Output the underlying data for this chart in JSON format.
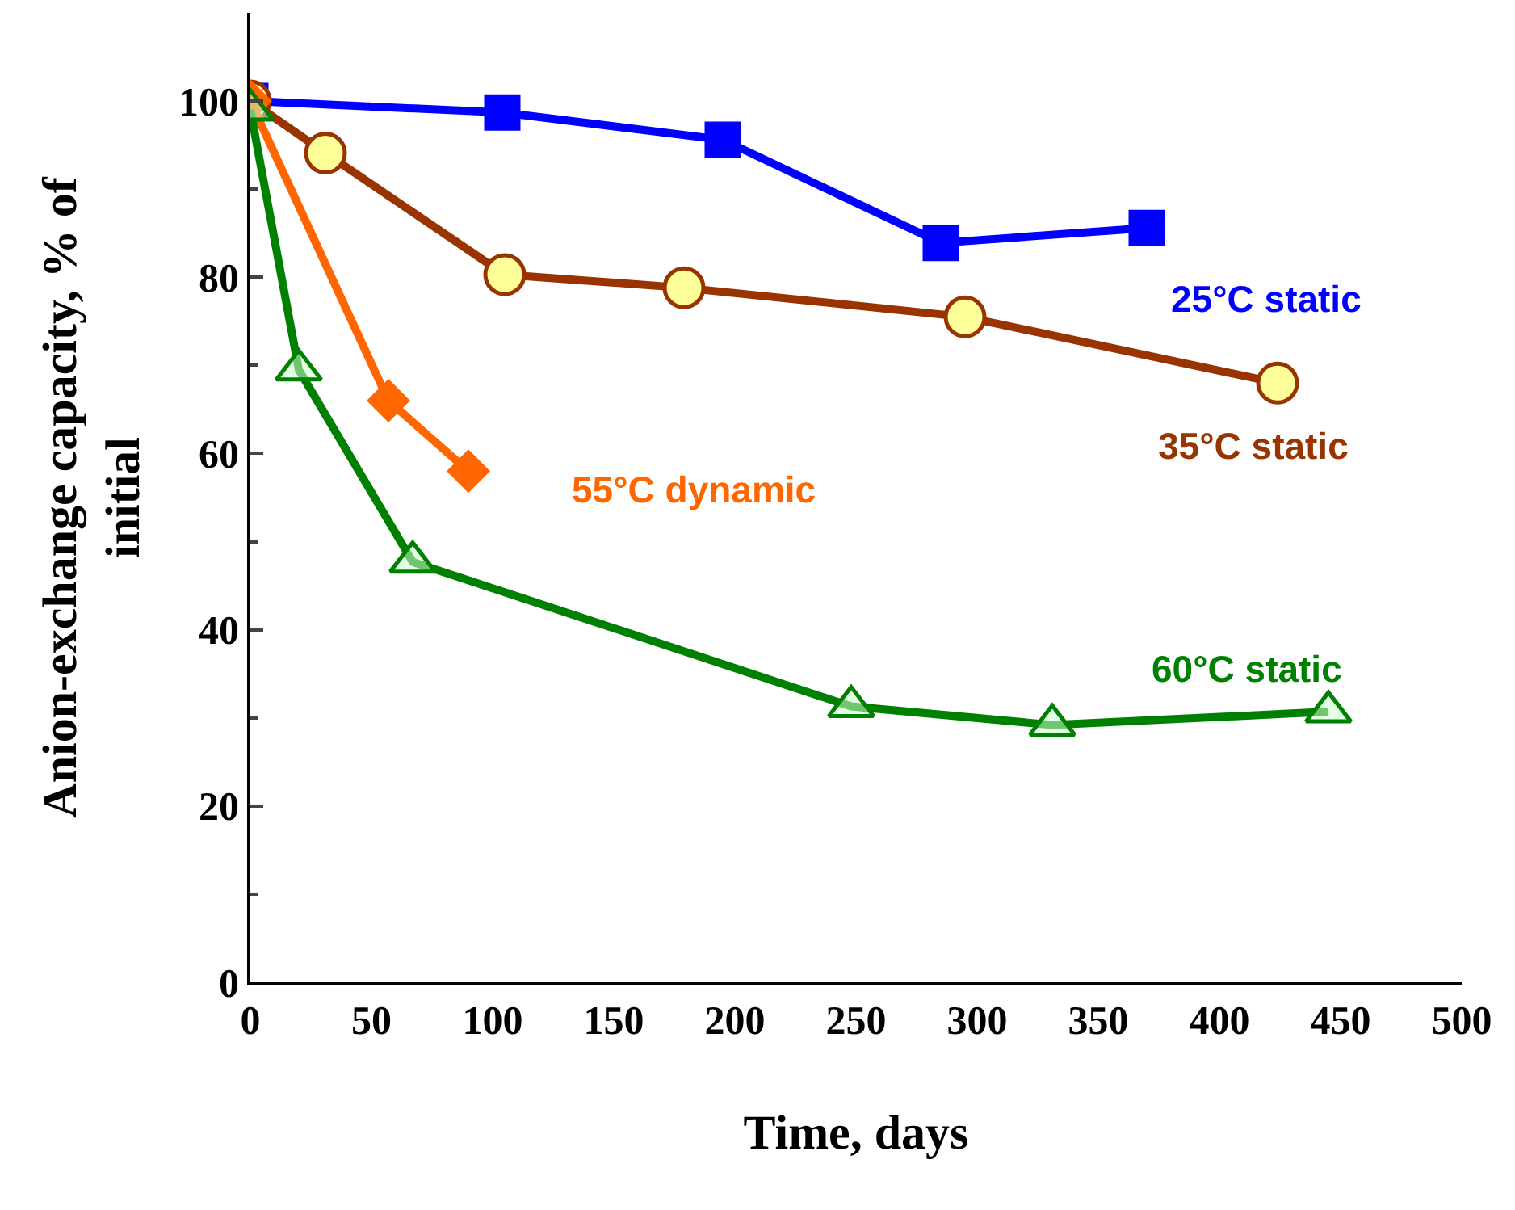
{
  "chart_data": {
    "type": "line",
    "xlabel": "Time, days",
    "ylabel": "Anion-exchange capacity, % of initial",
    "xlim": [
      0,
      500
    ],
    "ylim": [
      0,
      110
    ],
    "xticks": [
      0,
      50,
      100,
      150,
      200,
      250,
      300,
      350,
      400,
      450,
      500
    ],
    "yticks": [
      0,
      20,
      40,
      60,
      80,
      100
    ],
    "legend": false,
    "line_style": "solid",
    "series": [
      {
        "name": "25°C static",
        "color": "#0000ff",
        "marker": "square",
        "x": [
          0,
          104,
          195,
          285,
          370
        ],
        "values": [
          100,
          98.7,
          95.6,
          83.9,
          85.6
        ]
      },
      {
        "name": "35°C static",
        "color": "#993300",
        "marker": "circle",
        "x": [
          0,
          31,
          105,
          179,
          295,
          424
        ],
        "values": [
          100,
          94.1,
          80.3,
          78.8,
          75.5,
          68
        ]
      },
      {
        "name": "55°C dynamic",
        "color": "#ff6600",
        "marker": "diamond",
        "x": [
          0,
          57,
          90
        ],
        "values": [
          100,
          66,
          58
        ]
      },
      {
        "name": "60°C static",
        "color": "#008000",
        "marker": "triangle",
        "x": [
          0,
          20,
          67,
          248,
          331,
          445
        ],
        "values": [
          99,
          69.5,
          47.7,
          31.3,
          29.2,
          30.7
        ]
      }
    ]
  }
}
